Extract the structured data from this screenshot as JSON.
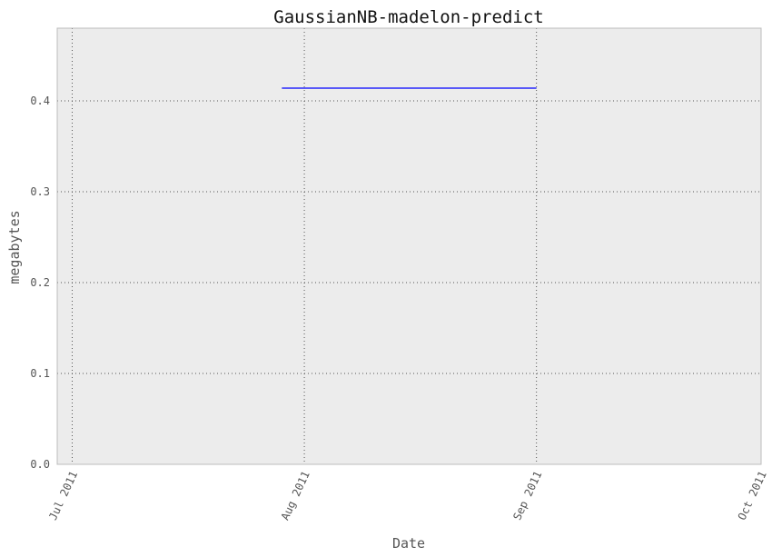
{
  "chart_data": {
    "type": "line",
    "title": "GaussianNB-madelon-predict",
    "xlabel": "Date",
    "ylabel": "megabytes",
    "xlim": [
      "2011-06-29",
      "2011-10-01"
    ],
    "ylim": [
      0,
      0.48
    ],
    "x_ticks": [
      {
        "date": "2011-07-01",
        "label": "Jul 2011"
      },
      {
        "date": "2011-08-01",
        "label": "Aug 2011"
      },
      {
        "date": "2011-09-01",
        "label": "Sep 2011"
      },
      {
        "date": "2011-10-01",
        "label": "Oct 2011"
      }
    ],
    "y_ticks": [
      {
        "value": 0.0,
        "label": "0.0"
      },
      {
        "value": 0.1,
        "label": "0.1"
      },
      {
        "value": 0.2,
        "label": "0.2"
      },
      {
        "value": 0.3,
        "label": "0.3"
      },
      {
        "value": 0.4,
        "label": "0.4"
      }
    ],
    "grid": true,
    "series": [
      {
        "color": "#0000ff",
        "x": [
          "2011-07-29",
          "2011-09-01"
        ],
        "y": [
          0.414,
          0.414
        ]
      }
    ],
    "background_color": "#ececec",
    "grid_color": "#555555"
  }
}
